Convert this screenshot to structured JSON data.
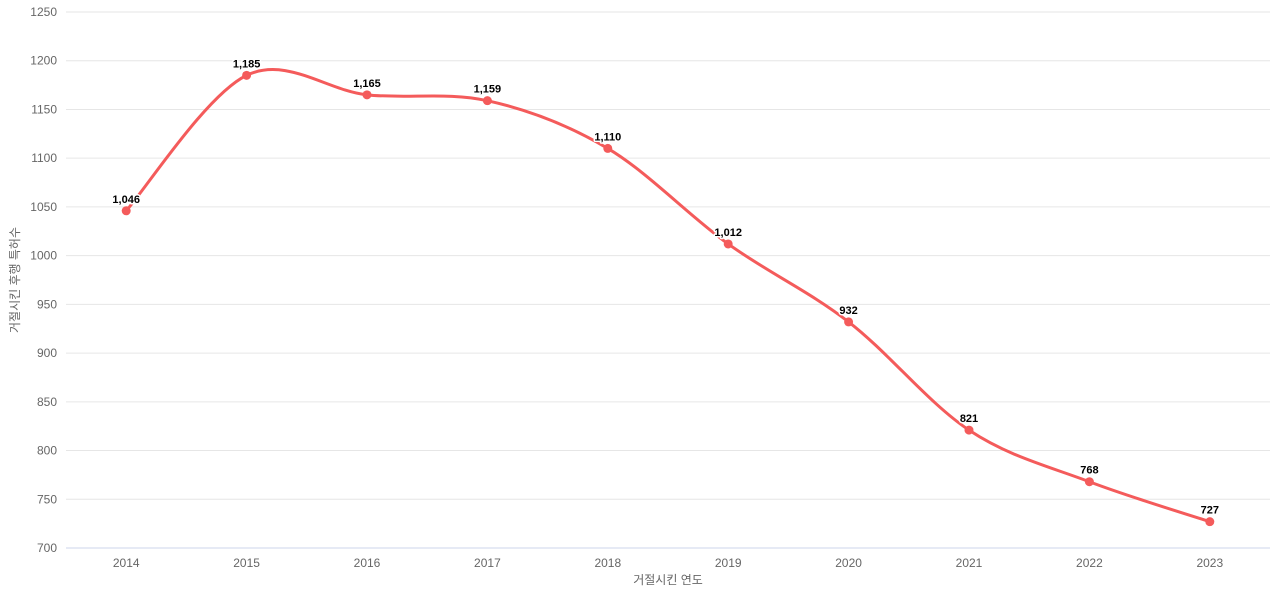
{
  "chart": {
    "background_color": "#ffffff",
    "series_color": "#f45b5b",
    "grid_color": "#e6e6e6",
    "axis_line_color": "#ccd6eb",
    "tick_label_color": "#666666",
    "axis_title_color": "#666666",
    "data_label_color": "#000000"
  },
  "chart_data": {
    "type": "line",
    "line_shape": "spline",
    "title": "",
    "xlabel": "거절시킨 연도",
    "ylabel": "거절시킨 후행 특허수",
    "categories": [
      "2014",
      "2015",
      "2016",
      "2017",
      "2018",
      "2019",
      "2020",
      "2021",
      "2022",
      "2023"
    ],
    "series": [
      {
        "name": "거절시킨 후행 특허수",
        "values": [
          1046,
          1185,
          1165,
          1159,
          1110,
          1012,
          932,
          821,
          768,
          727
        ],
        "data_labels": [
          "1,046",
          "1,185",
          "1,165",
          "1,159",
          "1,110",
          "1,012",
          "932",
          "821",
          "768",
          "727"
        ]
      }
    ],
    "ylim": [
      700,
      1250
    ],
    "y_tick_step": 50,
    "y_tick_labels": [
      "700",
      "750",
      "800",
      "850",
      "900",
      "950",
      "1000",
      "1050",
      "1100",
      "1150",
      "1200",
      "1250"
    ],
    "grid": "horizontal",
    "legend": "none",
    "marker": "circle"
  }
}
